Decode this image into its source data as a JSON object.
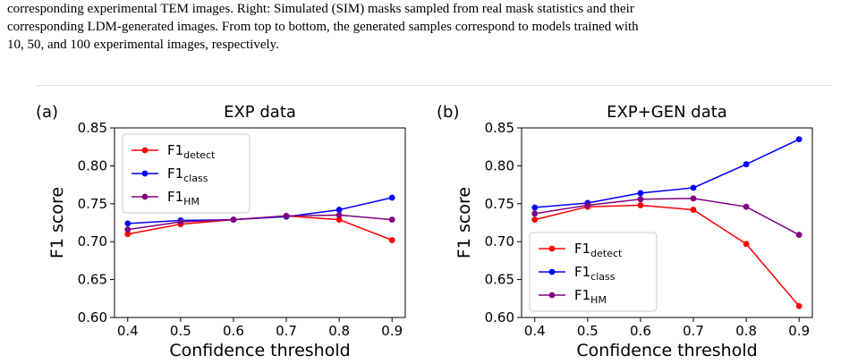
{
  "caption": {
    "line1": "corresponding experimental TEM images. Right: Simulated (SIM) masks sampled from real mask statistics and their",
    "line2": "corresponding LDM-generated images. From top to bottom, the generated samples correspond to models trained with",
    "line3": "10, 50, and 100 experimental images, respectively."
  },
  "colors": {
    "detect": "#ff0000",
    "class": "#0000ff",
    "hm": "#800080"
  },
  "chart_data": [
    {
      "type": "line",
      "panel": "(a)",
      "title": "EXP data",
      "xlabel": "Confidence threshold",
      "ylabel": "F1 score",
      "x": [
        0.4,
        0.5,
        0.6,
        0.7,
        0.8,
        0.9
      ],
      "xticks": [
        "0.4",
        "0.5",
        "0.6",
        "0.7",
        "0.8",
        "0.9"
      ],
      "yticks": [
        "0.60",
        "0.65",
        "0.70",
        "0.75",
        "0.80",
        "0.85"
      ],
      "ylim": [
        0.6,
        0.85
      ],
      "xlim": [
        0.375,
        0.925
      ],
      "legend_position": "upper-left",
      "grid": false,
      "series": [
        {
          "name": "F1",
          "sub": "detect",
          "color_key": "detect",
          "values": [
            0.71,
            0.723,
            0.729,
            0.734,
            0.729,
            0.702
          ]
        },
        {
          "name": "F1",
          "sub": "class",
          "color_key": "class",
          "values": [
            0.724,
            0.728,
            0.729,
            0.733,
            0.742,
            0.758
          ]
        },
        {
          "name": "F1",
          "sub": "HM",
          "color_key": "hm",
          "values": [
            0.716,
            0.726,
            0.729,
            0.734,
            0.735,
            0.729
          ]
        }
      ]
    },
    {
      "type": "line",
      "panel": "(b)",
      "title": "EXP+GEN data",
      "xlabel": "Confidence threshold",
      "ylabel": "F1 score",
      "x": [
        0.4,
        0.5,
        0.6,
        0.7,
        0.8,
        0.9
      ],
      "xticks": [
        "0.4",
        "0.5",
        "0.6",
        "0.7",
        "0.8",
        "0.9"
      ],
      "yticks": [
        "0.60",
        "0.65",
        "0.70",
        "0.75",
        "0.80",
        "0.85"
      ],
      "ylim": [
        0.6,
        0.85
      ],
      "xlim": [
        0.375,
        0.925
      ],
      "legend_position": "lower-left",
      "grid": false,
      "series": [
        {
          "name": "F1",
          "sub": "detect",
          "color_key": "detect",
          "values": [
            0.729,
            0.746,
            0.748,
            0.742,
            0.697,
            0.615
          ]
        },
        {
          "name": "F1",
          "sub": "class",
          "color_key": "class",
          "values": [
            0.745,
            0.751,
            0.764,
            0.771,
            0.802,
            0.835
          ]
        },
        {
          "name": "F1",
          "sub": "HM",
          "color_key": "hm",
          "values": [
            0.737,
            0.748,
            0.756,
            0.757,
            0.746,
            0.709
          ]
        }
      ]
    }
  ]
}
